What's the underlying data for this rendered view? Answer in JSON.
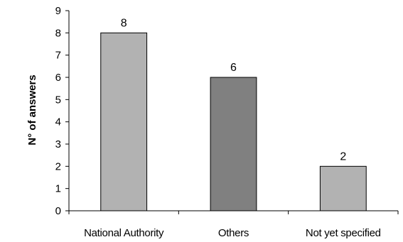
{
  "chart_data": {
    "type": "bar",
    "title": "",
    "xlabel": "",
    "ylabel": "N° of answers",
    "categories": [
      "National Authority",
      "Others",
      "Not yet specified"
    ],
    "values": [
      8,
      6,
      2
    ],
    "ylim": [
      0,
      9
    ],
    "yticks": [
      0,
      1,
      2,
      3,
      4,
      5,
      6,
      7,
      8,
      9
    ],
    "grid": false,
    "legend": "none",
    "bar_colors": [
      "#b2b2b2",
      "#808080",
      "#b2b2b2"
    ],
    "bar_stroke": "#000000",
    "data_labels": true
  }
}
